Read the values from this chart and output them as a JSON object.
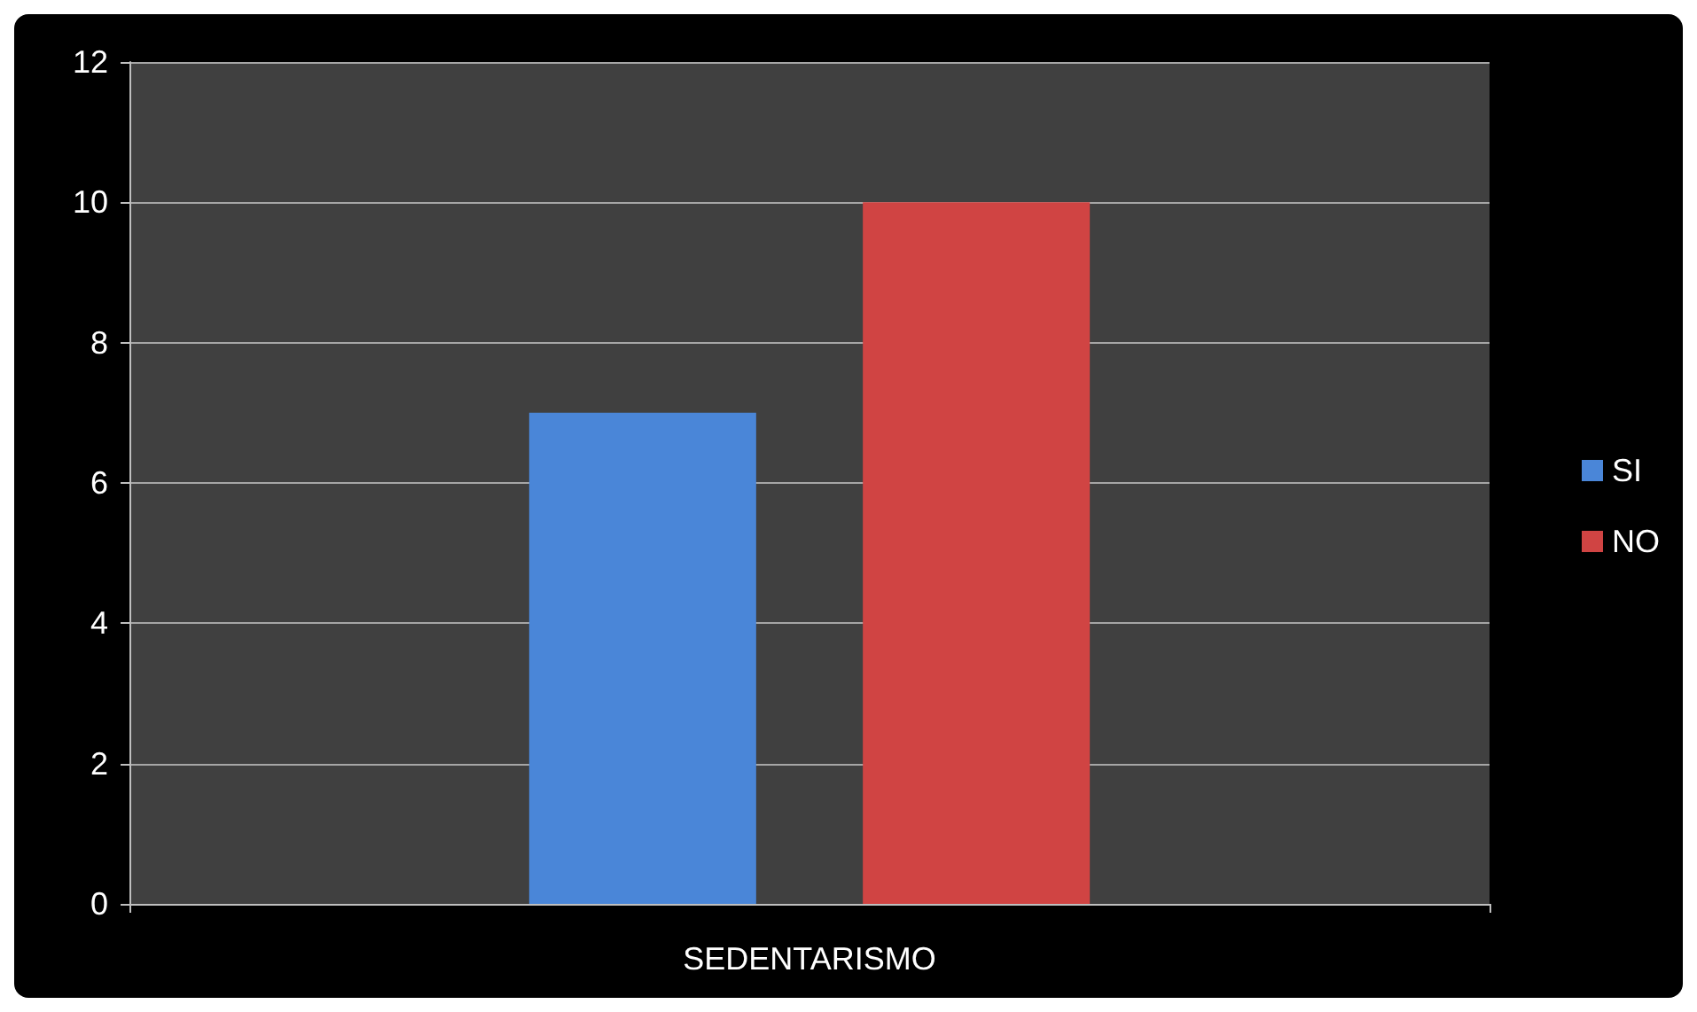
{
  "chart_data": {
    "type": "bar",
    "categories": [
      "SEDENTARISMO"
    ],
    "series": [
      {
        "name": "SI",
        "color": "#4a86d8",
        "values": [
          7
        ]
      },
      {
        "name": "NO",
        "color": "#d04443",
        "values": [
          10
        ]
      }
    ],
    "ylim": [
      0,
      12
    ],
    "yticks": [
      0,
      2,
      4,
      6,
      8,
      10,
      12
    ],
    "grid": "y",
    "legend": "right"
  }
}
